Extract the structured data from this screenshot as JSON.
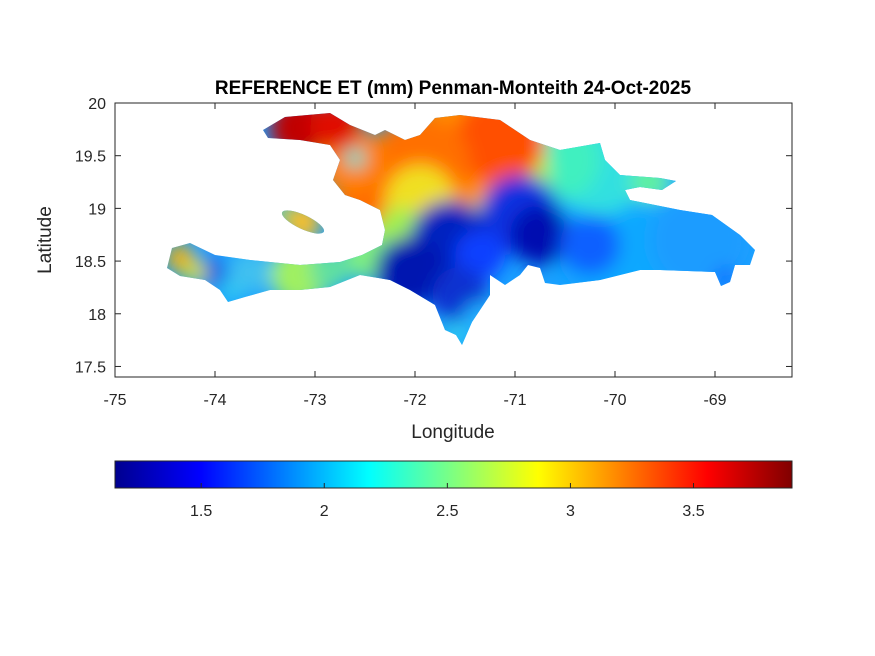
{
  "chart_data": {
    "type": "heatmap",
    "title": "REFERENCE ET (mm) Penman-Monteith 24-Oct-2025",
    "xlabel": "Longitude",
    "ylabel": "Latitude",
    "xlim": [
      -75,
      -68.23
    ],
    "ylim": [
      17.4,
      20
    ],
    "xticks": [
      -75,
      -74,
      -73,
      -72,
      -71,
      -70,
      -69
    ],
    "xtick_labels": [
      "-75",
      "-74",
      "-73",
      "-72",
      "-71",
      "-70",
      "-69"
    ],
    "yticks": [
      17.5,
      18,
      18.5,
      19,
      19.5,
      20
    ],
    "ytick_labels": [
      "17.5",
      "18",
      "18.5",
      "19",
      "19.5",
      "20"
    ],
    "colormap": "jet",
    "colorbar": {
      "placement": "bottom",
      "clim": [
        1.15,
        3.9
      ],
      "ticks": [
        1.5,
        2,
        2.5,
        3,
        3.5
      ],
      "tick_labels": [
        "1.5",
        "2",
        "2.5",
        "3",
        "3.5"
      ]
    },
    "field_summary": {
      "region": "Hispaniola",
      "high_values_area": "northwest (3.5-3.9)",
      "low_values_area": "central mountains (1.2-1.6)"
    }
  }
}
